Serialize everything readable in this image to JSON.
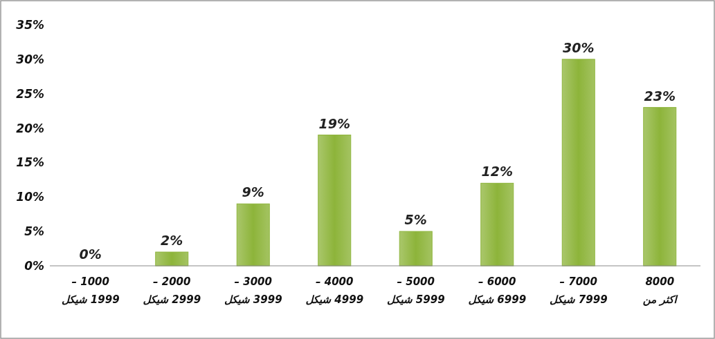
{
  "chart_data": {
    "type": "bar",
    "categories": [
      "1000 –\n1999 شيكل",
      "2000 –\n2999 شيكل",
      "3000 –\n3999 شيكل",
      "4000 –\n4999 شيكل",
      "5000 –\n5999 شيكل",
      "6000 –\n6999 شيكل",
      "7000 –\n7999 شيكل",
      "8000\nاكثر من"
    ],
    "values": [
      0,
      2,
      9,
      19,
      5,
      12,
      30,
      23
    ],
    "color": "#8db43a",
    "ylim": [
      0,
      35
    ],
    "yticks": [
      {
        "value": 0,
        "label": "0%"
      },
      {
        "value": 5,
        "label": "5%"
      },
      {
        "value": 10,
        "label": "10%"
      },
      {
        "value": 15,
        "label": "15%"
      },
      {
        "value": 20,
        "label": "20%"
      },
      {
        "value": 25,
        "label": "25%"
      },
      {
        "value": 30,
        "label": "30%"
      },
      {
        "value": 35,
        "label": "35%"
      }
    ],
    "value_labels": [
      "0%",
      "2%",
      "9%",
      "19%",
      "5%",
      "12%",
      "30%",
      "23%"
    ],
    "grid": false
  }
}
